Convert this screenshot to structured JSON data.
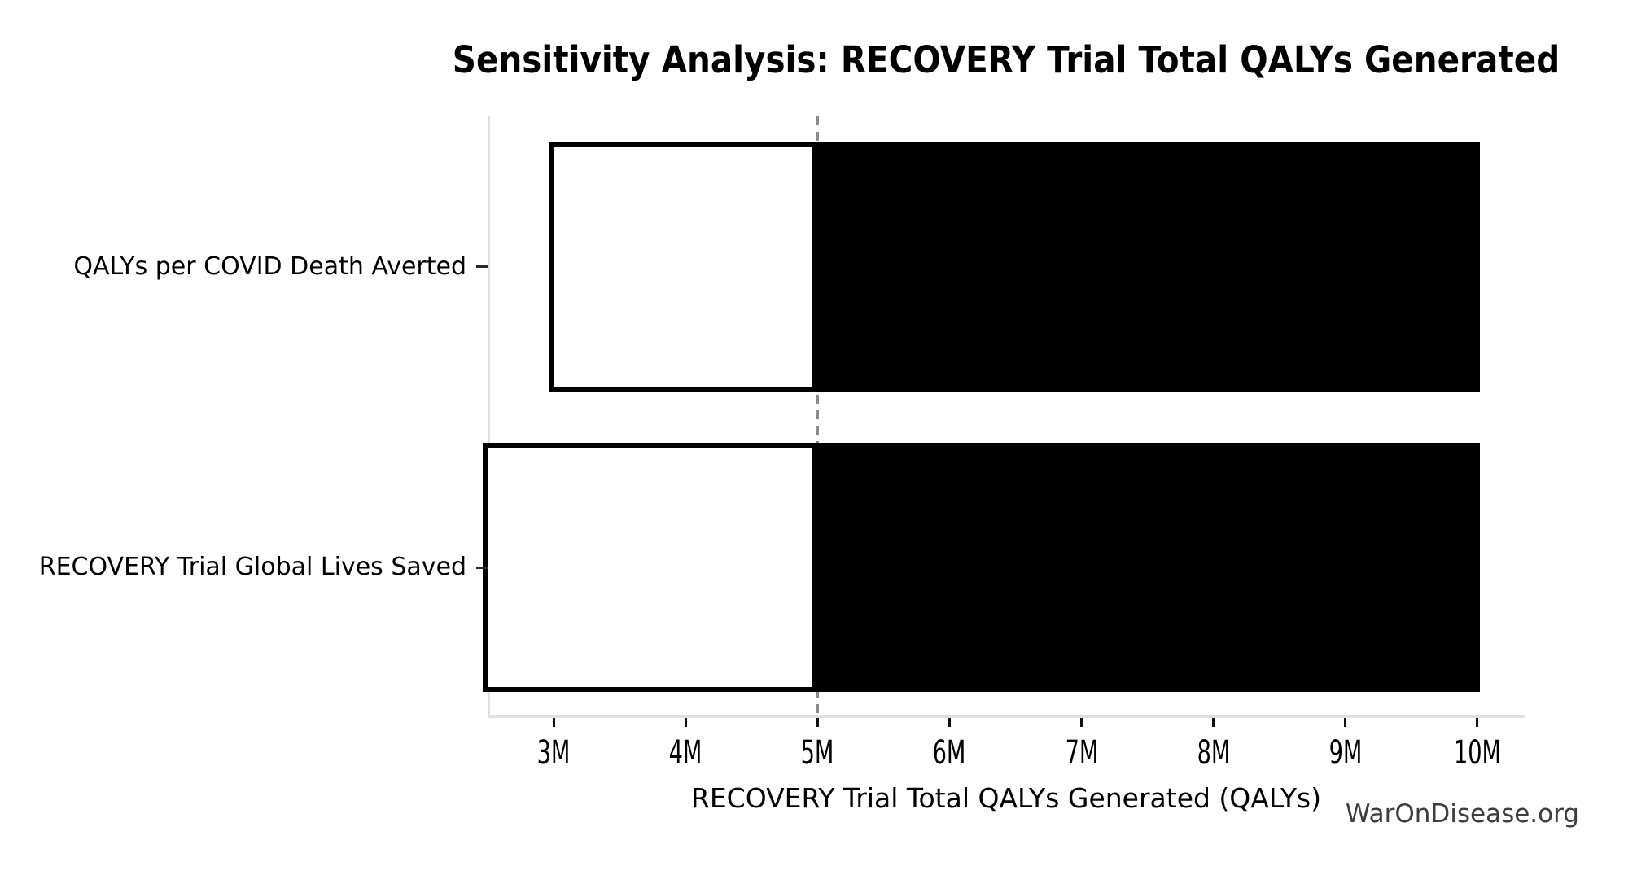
{
  "watermark": "WarOnDisease.org",
  "chart_data": {
    "type": "bar",
    "subtype": "tornado-sensitivity",
    "orientation": "horizontal",
    "title": "Sensitivity Analysis: RECOVERY Trial Total QALYs Generated",
    "xlabel": "RECOVERY Trial Total QALYs Generated (QALYs)",
    "ylabel": "",
    "grid": false,
    "legend": "none",
    "baseline": 5000000,
    "baseline_label": "5M",
    "xlim": [
      2500000,
      10400000
    ],
    "xticks": [
      {
        "value": 3000000,
        "label": "3M"
      },
      {
        "value": 4000000,
        "label": "4M"
      },
      {
        "value": 5000000,
        "label": "5M"
      },
      {
        "value": 6000000,
        "label": "6M"
      },
      {
        "value": 7000000,
        "label": "7M"
      },
      {
        "value": 8000000,
        "label": "8M"
      },
      {
        "value": 9000000,
        "label": "9M"
      },
      {
        "value": 10000000,
        "label": "10M"
      }
    ],
    "categories": [
      "QALYs per COVID Death Averted",
      "RECOVERY Trial Global Lives Saved"
    ],
    "series": [
      {
        "name": "QALYs per COVID Death Averted",
        "low": 3000000,
        "high": 10000000
      },
      {
        "name": "RECOVERY Trial Global Lives Saved",
        "low": 2500000,
        "high": 10000000
      }
    ],
    "colors": {
      "below_baseline_fill": "#ffffff",
      "above_baseline_fill": "#000000",
      "bar_edge": "#000000",
      "baseline_line": "#8a8a8a",
      "spine": "#e0e0e0",
      "text": "#000000",
      "watermark": "#3d3d3d"
    }
  }
}
